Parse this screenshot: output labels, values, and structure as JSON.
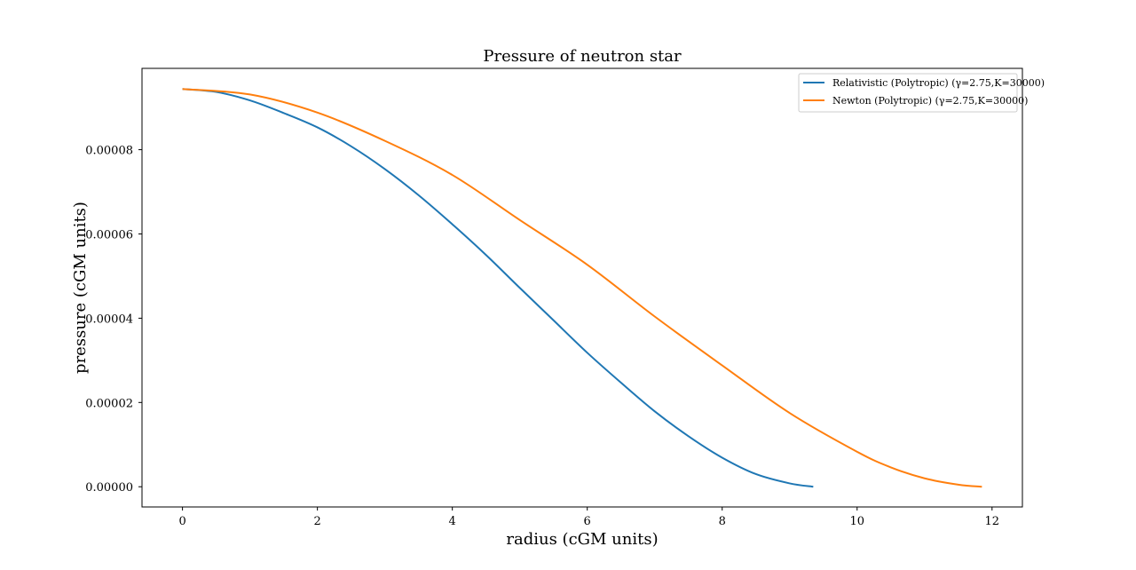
{
  "chart_data": {
    "type": "line",
    "title": "Pressure of neutron star",
    "xlabel": "radius (cGM units)",
    "ylabel": "pressure (cGM units)",
    "xlim": [
      -0.6,
      12.45
    ],
    "ylim": [
      -4.8e-06,
      9.93e-05
    ],
    "xticks": [
      0,
      2,
      4,
      6,
      8,
      10,
      12
    ],
    "xtick_labels": [
      "0",
      "2",
      "4",
      "6",
      "8",
      "10",
      "12"
    ],
    "yticks": [
      0.0,
      2e-05,
      4e-05,
      6e-05,
      8e-05
    ],
    "ytick_labels": [
      "0.00000",
      "0.00002",
      "0.00004",
      "0.00006",
      "0.00008"
    ],
    "grid": false,
    "legend_position": "top-right",
    "series": [
      {
        "name": "Relativistic (Polytropic) (γ=2.75,K=30000)",
        "color": "#1f77b4",
        "x": [
          0,
          0.5,
          1,
          1.5,
          2,
          2.5,
          3,
          3.5,
          4,
          4.5,
          5,
          5.5,
          6,
          6.5,
          7,
          7.5,
          8,
          8.5,
          9,
          9.35
        ],
        "y": [
          9.44e-05,
          9.37e-05,
          9.17e-05,
          8.87e-05,
          8.53e-05,
          8.08e-05,
          7.54e-05,
          6.92e-05,
          6.23e-05,
          5.5e-05,
          4.72e-05,
          3.95e-05,
          3.18e-05,
          2.47e-05,
          1.79e-05,
          1.2e-05,
          6.9e-06,
          3e-06,
          8e-07,
          0.0
        ]
      },
      {
        "name": "Newton (Polytropic) (γ=2.75,K=30000)",
        "color": "#ff7f0e",
        "x": [
          0,
          1,
          2,
          3,
          4,
          5,
          6,
          7,
          8,
          9,
          10,
          10.5,
          11,
          11.5,
          11.85
        ],
        "y": [
          9.44e-05,
          9.31e-05,
          8.88e-05,
          8.21e-05,
          7.4e-05,
          6.33e-05,
          5.27e-05,
          4.04e-05,
          2.88e-05,
          1.75e-05,
          8.3e-06,
          4.6e-06,
          2e-06,
          5e-07,
          0.0
        ]
      }
    ]
  }
}
